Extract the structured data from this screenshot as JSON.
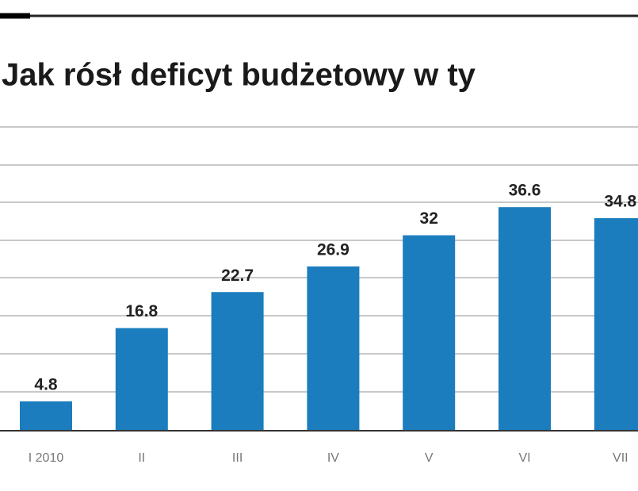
{
  "chart_data": {
    "type": "bar",
    "title": "Jak rósł deficyt budżetowy w ty",
    "categories": [
      "I 2010",
      "II",
      "III",
      "IV",
      "V",
      "VI",
      "VII"
    ],
    "values": [
      4.8,
      16.8,
      22.7,
      26.9,
      32,
      36.6,
      34.8
    ],
    "color": "#1b7dbd",
    "ylim": [
      0,
      50
    ]
  }
}
